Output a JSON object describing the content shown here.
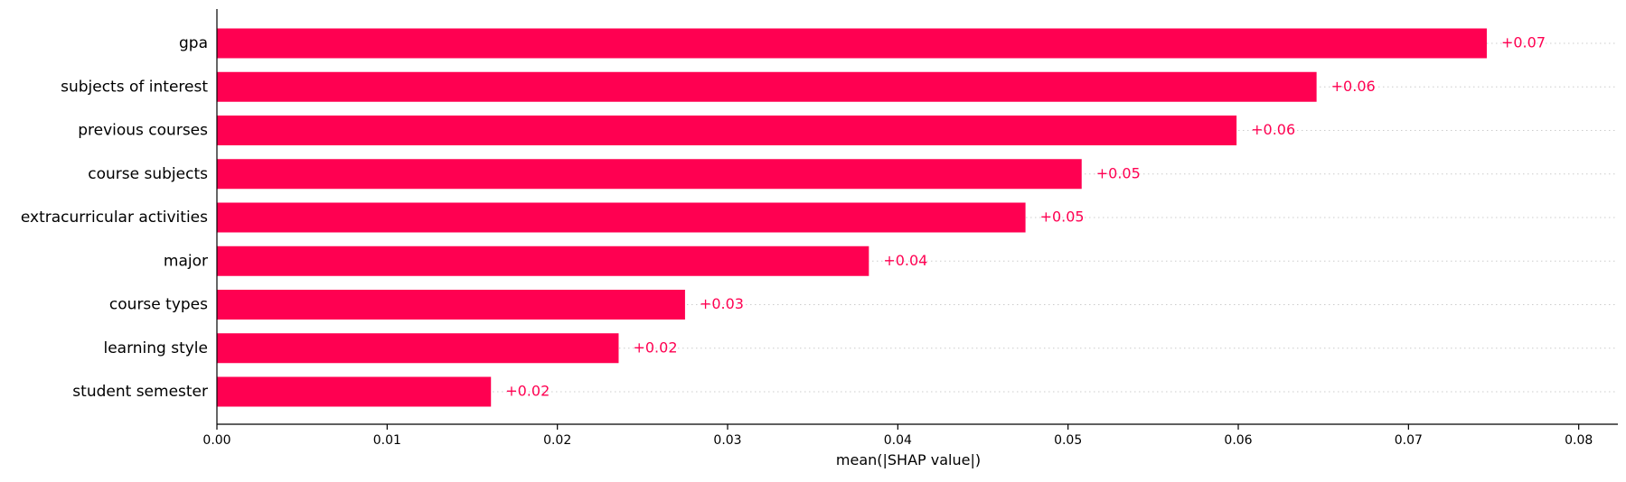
{
  "chart_data": {
    "type": "bar",
    "orientation": "horizontal",
    "categories": [
      "gpa",
      "subjects of interest",
      "previous courses",
      "course subjects",
      "extracurricular activities",
      "major",
      "course types",
      "learning style",
      "student semester"
    ],
    "values": [
      0.0746,
      0.0646,
      0.0599,
      0.0508,
      0.0475,
      0.0383,
      0.0275,
      0.0236,
      0.0161
    ],
    "value_labels": [
      "+0.07",
      "+0.06",
      "+0.06",
      "+0.05",
      "+0.05",
      "+0.04",
      "+0.03",
      "+0.02",
      "+0.02"
    ],
    "xlabel": "mean(|SHAP value|)",
    "ylabel": "",
    "title": "",
    "xlim": [
      0,
      0.0823
    ],
    "xticks": [
      0.0,
      0.01,
      0.02,
      0.03,
      0.04,
      0.05,
      0.06,
      0.07,
      0.08
    ],
    "xtick_labels": [
      "0.00",
      "0.01",
      "0.02",
      "0.03",
      "0.04",
      "0.05",
      "0.06",
      "0.07",
      "0.08"
    ],
    "grid": "dotted horizontal row lines",
    "colors": {
      "bar": "#ff0051",
      "value_label": "#ff0051",
      "axis": "#000000",
      "grid": "#cccccc"
    }
  }
}
